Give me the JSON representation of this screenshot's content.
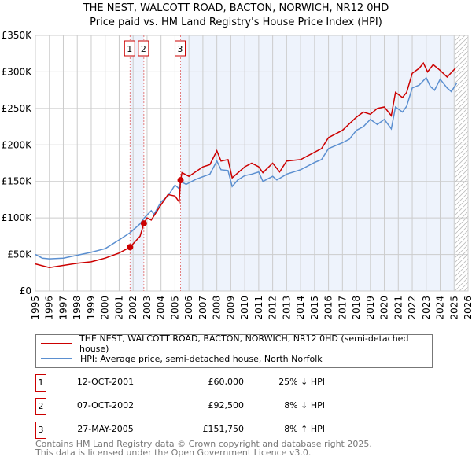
{
  "title": {
    "line1": "THE NEST, WALCOTT ROAD, BACTON, NORWICH, NR12 0HD",
    "line2": "Price paid vs. HM Land Registry's House Price Index (HPI)"
  },
  "chart_data": {
    "type": "line",
    "title": "THE NEST, WALCOTT ROAD, BACTON, NORWICH, NR12 0HD - Price paid vs. HM Land Registry's House Price Index (HPI)",
    "xlim": [
      1995,
      2026
    ],
    "ylim": [
      0,
      350000
    ],
    "yticks": [
      "£0",
      "£50K",
      "£100K",
      "£150K",
      "£200K",
      "£250K",
      "£300K",
      "£350K"
    ],
    "xticks": [
      "1995",
      "1996",
      "1997",
      "1998",
      "1999",
      "2000",
      "2001",
      "2002",
      "2003",
      "2004",
      "2005",
      "2006",
      "2007",
      "2008",
      "2009",
      "2010",
      "2011",
      "2012",
      "2013",
      "2014",
      "2015",
      "2016",
      "2017",
      "2018",
      "2019",
      "2020",
      "2021",
      "2022",
      "2023",
      "2024",
      "2025",
      "2026"
    ],
    "grid": true,
    "forecast_hatch_from": 2025.1,
    "series": [
      {
        "name": "THE NEST, WALCOTT ROAD, BACTON, NORWICH, NR12 0HD (semi-detached house)",
        "color": "#cc0000",
        "x": [
          1995,
          1996,
          1997,
          1998,
          1999,
          2000,
          2001,
          2001.78,
          2002.5,
          2002.77,
          2003,
          2003.3,
          2004,
          2004.5,
          2005,
          2005.3,
          2005.4,
          2005.5,
          2006,
          2007,
          2007.5,
          2008,
          2008.3,
          2008.8,
          2009.1,
          2010,
          2010.5,
          2011,
          2011.3,
          2012,
          2012.5,
          2013,
          2014,
          2015,
          2015.5,
          2016,
          2017,
          2018,
          2018.5,
          2019,
          2019.5,
          2020,
          2020.5,
          2020.8,
          2021.3,
          2021.6,
          2022,
          2022.5,
          2022.8,
          2023.1,
          2023.5,
          2024,
          2024.5,
          2025.1
        ],
        "y": [
          37,
          32,
          35,
          38,
          40,
          45,
          52,
          60,
          75,
          92.5,
          100,
          97,
          118,
          132,
          130,
          122,
          151.75,
          162,
          157,
          170,
          173,
          192,
          178,
          180,
          155,
          170,
          175,
          170,
          162,
          175,
          163,
          178,
          180,
          190,
          195,
          210,
          220,
          238,
          245,
          242,
          250,
          252,
          240,
          272,
          265,
          272,
          298,
          305,
          312,
          300,
          310,
          302,
          293,
          305
        ]
      },
      {
        "name": "HPI: Average price, semi-detached house, North Norfolk",
        "color": "#5b8fd0",
        "x": [
          1995,
          1995.5,
          1996,
          1997,
          1998,
          1999,
          2000,
          2001,
          2001.8,
          2002.5,
          2002.8,
          2003.3,
          2003.5,
          2004,
          2004.5,
          2005,
          2005.3,
          2005.4,
          2005.8,
          2006.5,
          2007.5,
          2008,
          2008.3,
          2008.8,
          2009.1,
          2009.5,
          2010,
          2010.5,
          2011,
          2011.3,
          2012,
          2012.3,
          2013,
          2014,
          2015,
          2015.5,
          2016,
          2017,
          2017.5,
          2018,
          2018.5,
          2019,
          2019.5,
          2020,
          2020.5,
          2020.8,
          2021.3,
          2021.6,
          2022,
          2022.5,
          2023,
          2023.3,
          2023.6,
          2024,
          2024.5,
          2024.8,
          2025.2
        ],
        "y": [
          50,
          45,
          44,
          45,
          49,
          53,
          58,
          70,
          80,
          92,
          100,
          110,
          105,
          122,
          130,
          145,
          140,
          150,
          146,
          153,
          160,
          178,
          166,
          165,
          143,
          152,
          158,
          160,
          163,
          150,
          157,
          152,
          160,
          166,
          176,
          180,
          195,
          203,
          208,
          220,
          225,
          235,
          228,
          235,
          222,
          252,
          245,
          253,
          278,
          282,
          292,
          280,
          275,
          290,
          278,
          273,
          285
        ]
      }
    ],
    "y_units": "thousands GBP",
    "sales": [
      {
        "n": "1",
        "x": 2001.78,
        "y": 60,
        "date": "12-OCT-2001",
        "price": "£60,000",
        "hpi": "25% ↓ HPI"
      },
      {
        "n": "2",
        "x": 2002.77,
        "y": 92.5,
        "date": "07-OCT-2002",
        "price": "£92,500",
        "hpi": "8% ↓ HPI"
      },
      {
        "n": "3",
        "x": 2005.4,
        "y": 151.75,
        "date": "27-MAY-2005",
        "price": "£151,750",
        "hpi": "8% ↑ HPI"
      }
    ]
  },
  "footer": {
    "line1": "Contains HM Land Registry data © Crown copyright and database right 2025.",
    "line2": "This data is licensed under the Open Government Licence v3.0."
  }
}
